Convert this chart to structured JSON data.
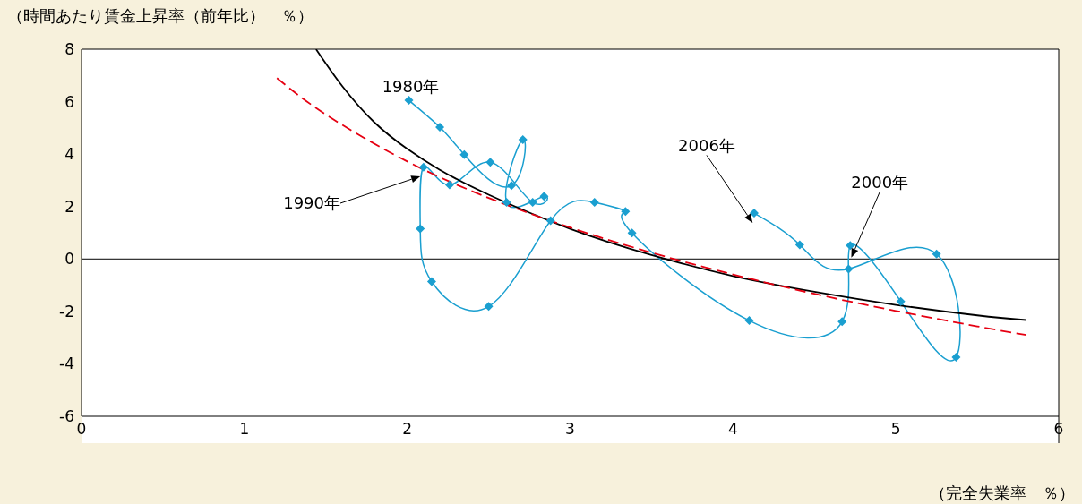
{
  "chart_data": {
    "type": "line",
    "ylabel": "（時間あたり賃金上昇率（前年比）　％）",
    "xlabel": "（完全失業率　％）",
    "xlim": [
      0,
      6
    ],
    "xticks": [
      0,
      1,
      2,
      3,
      4,
      5,
      6
    ],
    "ylim": [
      -6,
      8
    ],
    "yticks": [
      -6,
      -4,
      -2,
      0,
      2,
      4,
      6,
      8
    ],
    "grid": false,
    "legend": false,
    "ref_lines": [
      {
        "axis": "y",
        "value": 0,
        "color": "#000000"
      }
    ],
    "annotations": [
      {
        "text": "1980年",
        "x": 2.01,
        "y": 6.05
      },
      "1990年",
      {
        "text": "2006年",
        "x": 4.13,
        "y": 1.75
      },
      {
        "text": "2000年",
        "x": 4.72,
        "y": 0.51
      }
    ],
    "series": [
      {
        "type": "line",
        "color": "#1a9fd0",
        "marker": "diamond",
        "line_style": "solid",
        "x": [
          2.01,
          2.2,
          2.35,
          2.64,
          2.71,
          2.61,
          2.84,
          2.77,
          2.51,
          2.26,
          2.1,
          2.08,
          2.15,
          2.5,
          2.88,
          3.15,
          3.34,
          3.38,
          4.1,
          4.67,
          4.72,
          5.03,
          5.37,
          5.25,
          4.71,
          4.41,
          4.13
        ],
        "values": [
          6.05,
          5.03,
          3.98,
          2.8,
          4.55,
          2.16,
          2.39,
          2.16,
          3.69,
          2.83,
          3.5,
          1.15,
          -0.86,
          -1.81,
          1.46,
          2.16,
          1.81,
          0.99,
          -2.35,
          -2.39,
          0.51,
          -1.62,
          -3.75,
          0.19,
          -0.38,
          0.54,
          1.75
        ]
      },
      {
        "type": "line",
        "color": "#000000",
        "marker": "none",
        "line_style": "solid",
        "x": [
          1.44,
          1.6,
          1.8,
          2.0,
          2.2,
          2.5,
          3.0,
          3.5,
          4.0,
          4.5,
          5.0,
          5.5,
          5.8
        ],
        "values": [
          8,
          6.6,
          5.2,
          4.2,
          3.4,
          2.45,
          1.15,
          0.15,
          -0.65,
          -1.25,
          -1.75,
          -2.15,
          -2.33
        ]
      },
      {
        "type": "line",
        "color": "#e60012",
        "marker": "none",
        "line_style": "dashed",
        "x": [
          1.2,
          1.5,
          2.0,
          2.5,
          3.0,
          3.5,
          4.0,
          4.5,
          5.0,
          5.5,
          5.8
        ],
        "values": [
          6.9,
          5.51,
          3.72,
          2.33,
          1.2,
          0.24,
          -0.59,
          -1.33,
          -1.98,
          -2.57,
          -2.9
        ]
      }
    ]
  }
}
